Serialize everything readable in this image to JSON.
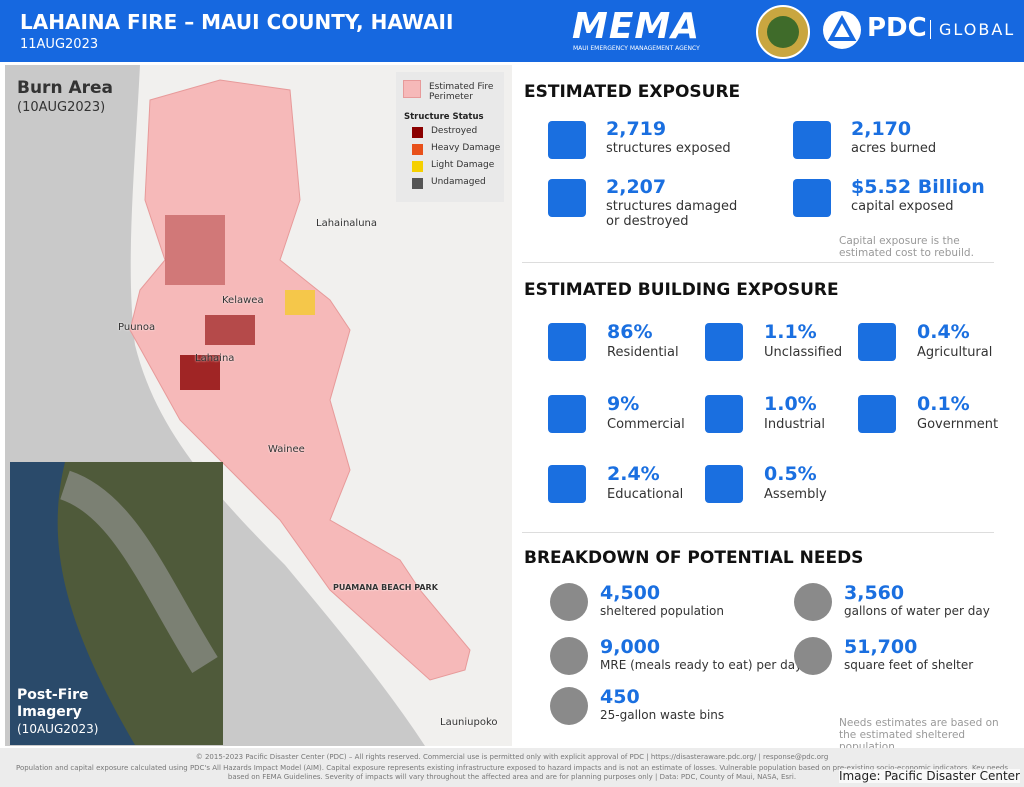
{
  "header": {
    "title": "LAHAINA FIRE – MAUI COUNTY, HAWAII",
    "date": "11AUG2023",
    "mema": "MEMA",
    "mema_sub": "MAUI EMERGENCY MANAGEMENT AGENCY",
    "pdc": "PDC",
    "pdc_sub": "GLOBAL"
  },
  "map": {
    "title": "Burn Area",
    "date": "(10AUG2023)",
    "legend": {
      "perimeter": "Estimated Fire Perimeter",
      "status_title": "Structure Status",
      "items": [
        {
          "label": "Destroyed",
          "color": "#8b0000"
        },
        {
          "label": "Heavy Damage",
          "color": "#e8501a"
        },
        {
          "label": "Light Damage",
          "color": "#f5d000"
        },
        {
          "label": "Undamaged",
          "color": "#555555"
        }
      ]
    },
    "places": [
      "Lahainaluna",
      "Kelawea",
      "Puunoa",
      "Lahaina",
      "Wainee",
      "PUAMANA BEACH PARK",
      "Launiupoko"
    ],
    "inset": {
      "title": "Post-Fire Imagery",
      "date": "(10AUG2023)"
    }
  },
  "exposure": {
    "title": "ESTIMATED EXPOSURE",
    "items": [
      {
        "value": "2,719",
        "label": "structures exposed"
      },
      {
        "value": "2,170",
        "label": "acres burned"
      },
      {
        "value": "2,207",
        "label": "structures damaged or destroyed"
      },
      {
        "value": "$5.52 Billion",
        "label": "capital exposed"
      }
    ],
    "note": "Capital exposure is the estimated cost to rebuild."
  },
  "building": {
    "title": "ESTIMATED BUILDING EXPOSURE",
    "items": [
      {
        "value": "86%",
        "label": "Residential"
      },
      {
        "value": "1.1%",
        "label": "Unclassified"
      },
      {
        "value": "0.4%",
        "label": "Agricultural"
      },
      {
        "value": "9%",
        "label": "Commercial"
      },
      {
        "value": "1.0%",
        "label": "Industrial"
      },
      {
        "value": "0.1%",
        "label": "Government"
      },
      {
        "value": "2.4%",
        "label": "Educational"
      },
      {
        "value": "0.5%",
        "label": "Assembly"
      }
    ]
  },
  "needs": {
    "title": "BREAKDOWN OF POTENTIAL NEEDS",
    "items": [
      {
        "value": "4,500",
        "label": "sheltered population"
      },
      {
        "value": "3,560",
        "label": "gallons of water per day"
      },
      {
        "value": "9,000",
        "label": "MRE (meals ready to eat) per day"
      },
      {
        "value": "51,700",
        "label": "square feet of shelter"
      },
      {
        "value": "450",
        "label": "25-gallon waste bins"
      }
    ],
    "note": "Needs estimates are based on the estimated sheltered population."
  },
  "footer": {
    "line1": "© 2015-2023 Pacific Disaster Center (PDC) – All rights reserved. Commercial use is permitted only with explicit approval of PDC | https://disasteraware.pdc.org/ | response@pdc.org",
    "line2": "Population and capital exposure calculated using PDC's All Hazards Impact Model (AIM). Capital exposure represents existing infrastructure exposed to hazard impacts and is not an estimate of losses. Vulnerable population based on pre-existing socio-economic indicators. Key needs based on FEMA Guidelines. Severity of impacts will vary throughout the affected area and are for planning purposes only | Data: PDC, County of Maui, NASA, Esri.",
    "credit": "Image: Pacific Disaster Center"
  }
}
